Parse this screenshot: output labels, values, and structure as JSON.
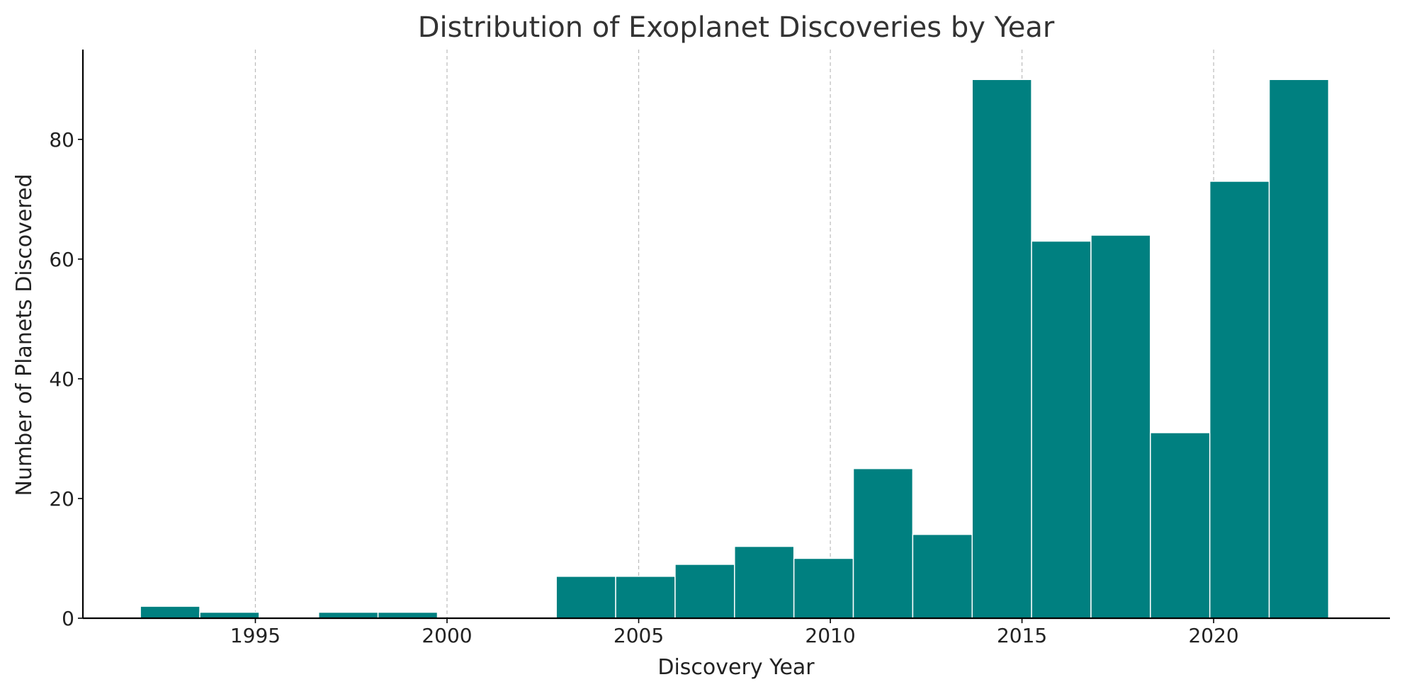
{
  "chart_data": {
    "type": "bar",
    "title": "Distribution of Exoplanet Discoveries by Year",
    "xlabel": "Discovery Year",
    "ylabel": "Number of Planets Discovered",
    "xlim": [
      1990.5,
      2024.6
    ],
    "ylim": [
      0,
      95
    ],
    "x_ticks": [
      1995,
      2000,
      2005,
      2010,
      2015,
      2020
    ],
    "y_ticks": [
      0,
      20,
      40,
      60,
      80
    ],
    "grid": "vertical dashed",
    "bar_color": "#008080",
    "bins": [
      {
        "start": 1992.0,
        "end": 1993.55,
        "value": 2
      },
      {
        "start": 1993.55,
        "end": 1995.1,
        "value": 1
      },
      {
        "start": 1995.1,
        "end": 1996.65,
        "value": 0
      },
      {
        "start": 1996.65,
        "end": 1998.2,
        "value": 1
      },
      {
        "start": 1998.2,
        "end": 1999.75,
        "value": 1
      },
      {
        "start": 1999.75,
        "end": 2001.3,
        "value": 0
      },
      {
        "start": 2001.3,
        "end": 2002.85,
        "value": 0
      },
      {
        "start": 2002.85,
        "end": 2004.4,
        "value": 7
      },
      {
        "start": 2004.4,
        "end": 2005.95,
        "value": 7
      },
      {
        "start": 2005.95,
        "end": 2007.5,
        "value": 9
      },
      {
        "start": 2007.5,
        "end": 2009.05,
        "value": 12
      },
      {
        "start": 2009.05,
        "end": 2010.6,
        "value": 10
      },
      {
        "start": 2010.6,
        "end": 2012.15,
        "value": 25
      },
      {
        "start": 2012.15,
        "end": 2013.7,
        "value": 14
      },
      {
        "start": 2013.7,
        "end": 2015.25,
        "value": 90
      },
      {
        "start": 2015.25,
        "end": 2016.8,
        "value": 63
      },
      {
        "start": 2016.8,
        "end": 2018.35,
        "value": 64
      },
      {
        "start": 2018.35,
        "end": 2019.9,
        "value": 31
      },
      {
        "start": 2019.9,
        "end": 2021.45,
        "value": 73
      },
      {
        "start": 2021.45,
        "end": 2023.0,
        "value": 90
      }
    ]
  }
}
